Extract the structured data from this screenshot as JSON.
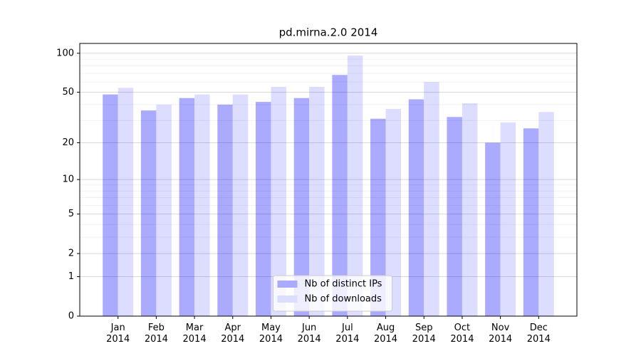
{
  "chart_data": {
    "type": "bar",
    "title": "pd.mirna.2.0 2014",
    "categories": [
      "Jan\n2014",
      "Feb\n2014",
      "Mar\n2014",
      "Apr\n2014",
      "May\n2014",
      "Jun\n2014",
      "Jul\n2014",
      "Aug\n2014",
      "Sep\n2014",
      "Oct\n2014",
      "Nov\n2014",
      "Dec\n2014"
    ],
    "series": [
      {
        "name": "Nb of distinct IPs",
        "color": "#aaaaff",
        "values": [
          48,
          36,
          45,
          40,
          42,
          45,
          68,
          31,
          44,
          32,
          20,
          26
        ]
      },
      {
        "name": "Nb of downloads",
        "color": "#ddddff",
        "values": [
          54,
          40,
          48,
          48,
          55,
          55,
          96,
          37,
          60,
          41,
          29,
          35
        ]
      }
    ],
    "yscale": "log1p",
    "ylim": [
      0,
      119
    ],
    "yticks": [
      0,
      1,
      2,
      5,
      10,
      20,
      50,
      100
    ],
    "yminorticks": [
      3,
      4,
      6,
      7,
      8,
      9,
      30,
      40,
      60,
      70,
      80,
      90
    ],
    "grid": true,
    "legend": "lower center"
  }
}
